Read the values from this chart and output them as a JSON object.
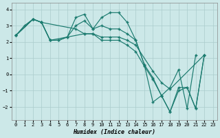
{
  "xlabel": "Humidex (Indice chaleur)",
  "line_color": "#1a7a6e",
  "background_color": "#cce8e8",
  "grid_color": "#aacccc",
  "xlim": [
    -0.5,
    23.5
  ],
  "ylim": [
    -2.8,
    4.4
  ],
  "yticks": [
    -2,
    -1,
    0,
    1,
    2,
    3,
    4
  ],
  "xticks": [
    0,
    1,
    2,
    3,
    4,
    5,
    6,
    7,
    8,
    9,
    10,
    11,
    12,
    13,
    14,
    15,
    16,
    17,
    18,
    19,
    20,
    21,
    22,
    23
  ],
  "series": [
    {
      "x": [
        0,
        1,
        2,
        3,
        4,
        5,
        6,
        7,
        8,
        9,
        10,
        11,
        12,
        13,
        14,
        15,
        16,
        17,
        18,
        19,
        20,
        21,
        22
      ],
      "y": [
        2.4,
        3.0,
        3.4,
        3.2,
        2.1,
        2.1,
        2.3,
        3.5,
        3.7,
        2.8,
        3.5,
        3.8,
        3.8,
        3.2,
        2.1,
        0.6,
        -1.7,
        -1.3,
        -0.8,
        0.3,
        -2.1,
        1.2,
        null
      ]
    },
    {
      "x": [
        0,
        2,
        3,
        4,
        5,
        6,
        7,
        8,
        9,
        10,
        11,
        12,
        13,
        14,
        15,
        16,
        17,
        18,
        19,
        20,
        21,
        22
      ],
      "y": [
        2.4,
        3.4,
        3.2,
        2.1,
        2.1,
        2.3,
        3.0,
        3.3,
        2.8,
        3.0,
        2.8,
        2.8,
        2.5,
        2.1,
        0.6,
        -0.2,
        -1.3,
        -2.3,
        -0.8,
        -0.8,
        -2.1,
        1.2
      ]
    },
    {
      "x": [
        0,
        2,
        3,
        7,
        8,
        9,
        10,
        11,
        12,
        13,
        14,
        15,
        16,
        17,
        18,
        19,
        20,
        21,
        22
      ],
      "y": [
        2.4,
        3.4,
        3.2,
        2.8,
        2.5,
        2.5,
        2.1,
        2.1,
        2.1,
        1.8,
        1.4,
        0.5,
        -0.3,
        -1.3,
        -2.3,
        -1.0,
        -0.8,
        -2.1,
        1.2
      ]
    },
    {
      "x": [
        0,
        2,
        3,
        4,
        8,
        9,
        10,
        11,
        12,
        13,
        14,
        16,
        17,
        18,
        22
      ],
      "y": [
        2.4,
        3.4,
        3.2,
        2.1,
        2.5,
        2.5,
        2.3,
        2.3,
        2.3,
        2.1,
        1.8,
        0.2,
        -0.5,
        -0.9,
        1.2
      ]
    }
  ]
}
